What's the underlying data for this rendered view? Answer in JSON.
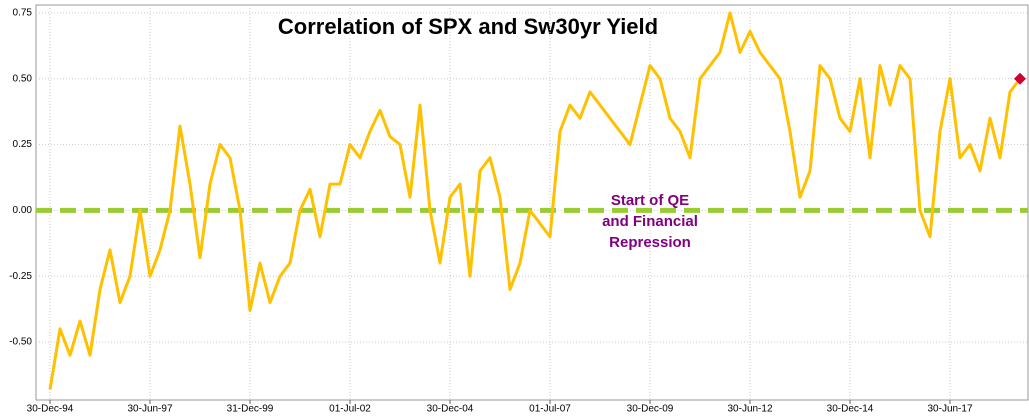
{
  "chart_data": {
    "type": "line",
    "title": "Correlation of SPX and Sw30yr Yield",
    "annotations": [
      "Start of QE",
      "and Financial",
      "Repression"
    ],
    "annotation_color": "#800080",
    "categories": [
      "30-Dec-94",
      null,
      null,
      null,
      null,
      null,
      null,
      null,
      null,
      null,
      "30-Jun-97",
      null,
      null,
      null,
      null,
      null,
      null,
      null,
      null,
      null,
      "31-Dec-99",
      null,
      null,
      null,
      null,
      null,
      null,
      null,
      null,
      null,
      "01-Jul-02",
      null,
      null,
      null,
      null,
      null,
      null,
      null,
      null,
      null,
      "30-Dec-04",
      null,
      null,
      null,
      null,
      null,
      null,
      null,
      null,
      null,
      "01-Jul-07",
      null,
      null,
      null,
      null,
      null,
      null,
      null,
      null,
      null,
      "30-Dec-09",
      null,
      null,
      null,
      null,
      null,
      null,
      null,
      null,
      null,
      "30-Jun-12",
      null,
      null,
      null,
      null,
      null,
      null,
      null,
      null,
      null,
      "30-Dec-14",
      null,
      null,
      null,
      null,
      null,
      null,
      null,
      null,
      null,
      "30-Jun-17",
      null,
      null,
      null,
      null,
      null,
      null,
      null
    ],
    "series": [
      {
        "name": "Correlation",
        "color": "#ffc000",
        "values": [
          -0.68,
          -0.45,
          -0.55,
          -0.42,
          -0.55,
          -0.3,
          -0.15,
          -0.35,
          -0.25,
          0.0,
          -0.25,
          -0.15,
          0.0,
          0.32,
          0.1,
          -0.18,
          0.1,
          0.25,
          0.2,
          0.0,
          -0.38,
          -0.2,
          -0.35,
          -0.25,
          -0.2,
          0.0,
          0.08,
          -0.1,
          0.1,
          0.1,
          0.25,
          0.2,
          0.3,
          0.38,
          0.28,
          0.25,
          0.05,
          0.4,
          0.0,
          -0.2,
          0.05,
          0.1,
          -0.25,
          0.15,
          0.2,
          0.05,
          -0.3,
          -0.2,
          0.0,
          -0.05,
          -0.1,
          0.3,
          0.4,
          0.35,
          0.45,
          0.4,
          0.35,
          0.3,
          0.25,
          0.4,
          0.55,
          0.5,
          0.35,
          0.3,
          0.2,
          0.5,
          0.55,
          0.6,
          0.75,
          0.6,
          0.68,
          0.6,
          0.55,
          0.5,
          0.3,
          0.05,
          0.15,
          0.55,
          0.5,
          0.35,
          0.3,
          0.5,
          0.2,
          0.55,
          0.4,
          0.55,
          0.5,
          0.0,
          -0.1,
          0.3,
          0.5,
          0.2,
          0.25,
          0.15,
          0.35,
          0.2,
          0.45,
          0.5
        ]
      }
    ],
    "end_marker_color": "#cc0033",
    "reference_line": {
      "value": 0,
      "color": "#99cc33"
    },
    "ylim": [
      -0.72,
      0.78
    ],
    "yticks": [
      {
        "value": 0.75,
        "label": "0.75"
      },
      {
        "value": 0.5,
        "label": "0.50"
      },
      {
        "value": 0.25,
        "label": "0.25"
      },
      {
        "value": 0,
        "label": "0.00"
      },
      {
        "value": -0.25,
        "label": "-0.25"
      },
      {
        "value": -0.5,
        "label": "-0.50"
      }
    ],
    "grid": true
  }
}
